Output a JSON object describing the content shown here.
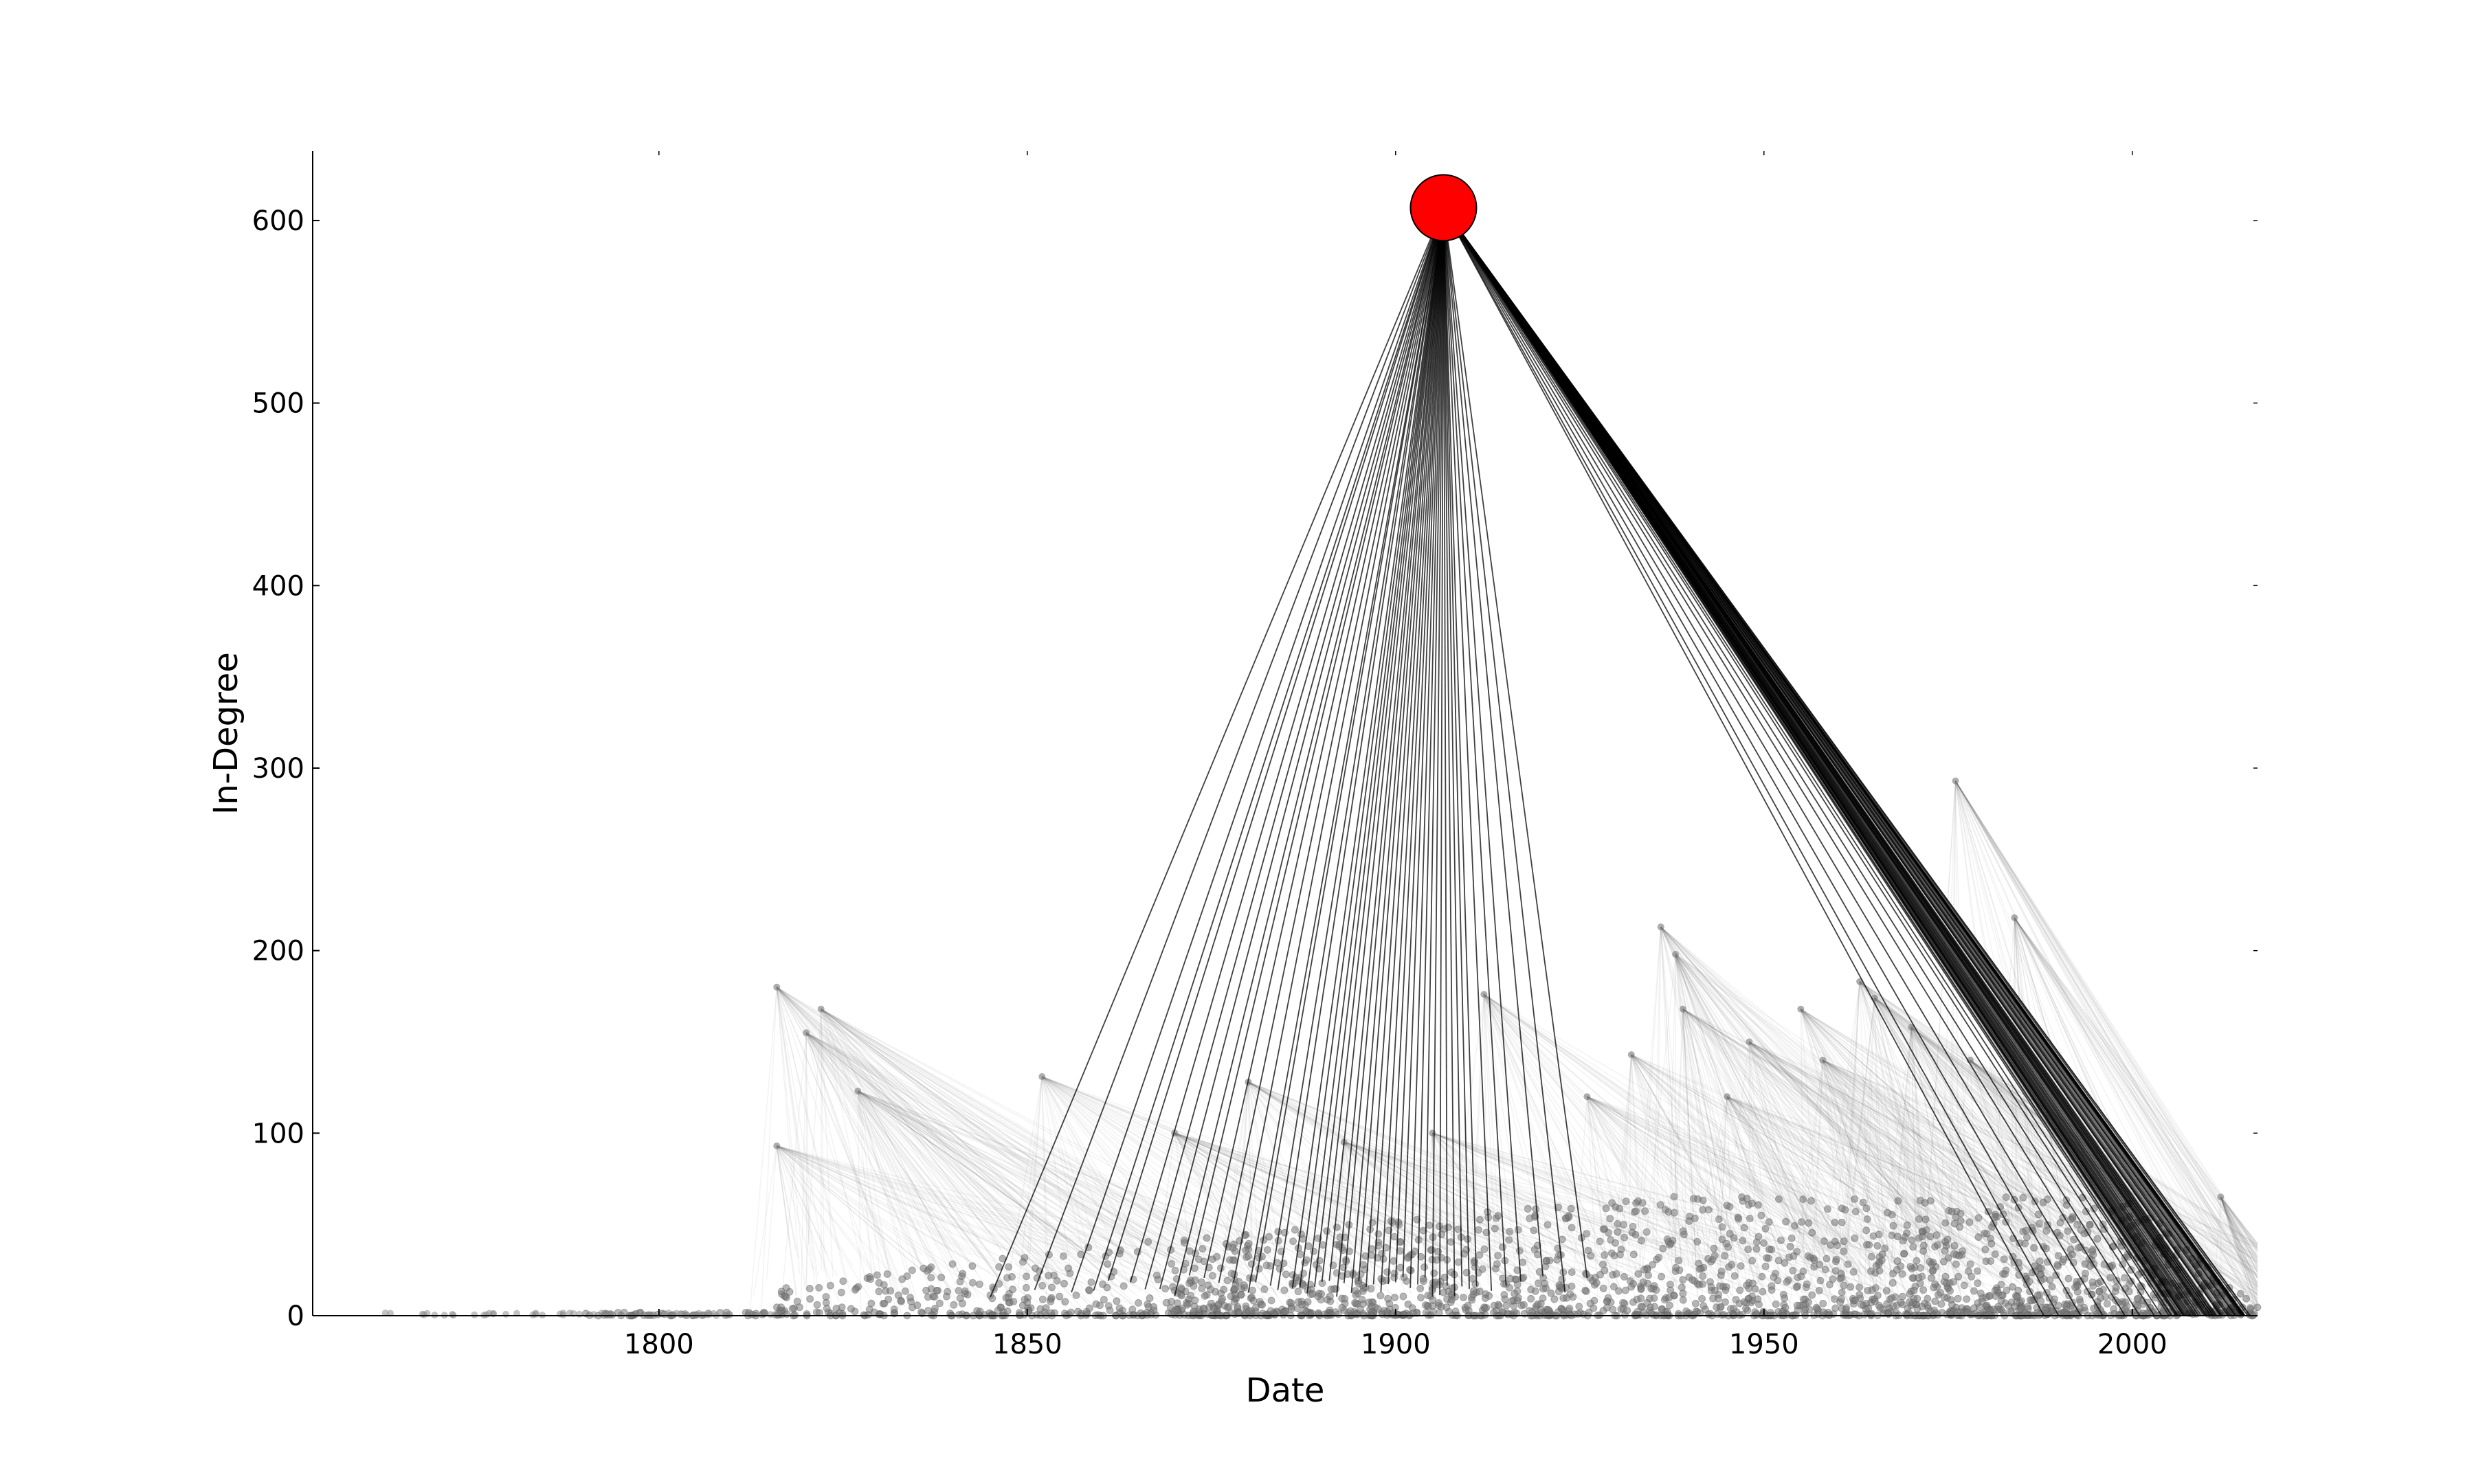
{
  "chart_data": {
    "type": "scatter",
    "title": "",
    "xlabel": "Date",
    "ylabel": "In-Degree",
    "xlim": [
      1753,
      2017
    ],
    "ylim": [
      0,
      638
    ],
    "xticks": [
      1800,
      1850,
      1900,
      1950,
      2000
    ],
    "yticks": [
      0,
      100,
      200,
      300,
      400,
      500,
      600
    ],
    "grid": false,
    "legend": "none",
    "highlight": {
      "x": 1906.5,
      "y": 607,
      "color": "#ff0000"
    },
    "highlight_citation_dates": [
      1845,
      1851,
      1856,
      1859,
      1861,
      1864,
      1866,
      1868,
      1870,
      1872,
      1874,
      1876,
      1878,
      1880,
      1881,
      1883,
      1884,
      1886,
      1887,
      1888,
      1889,
      1890,
      1891,
      1892,
      1893,
      1894,
      1895,
      1896,
      1897,
      1898,
      1899,
      1900,
      1901,
      1902,
      1903,
      1904,
      1905,
      1906,
      1907,
      1908,
      1909,
      1910,
      1911,
      1913,
      1915,
      1917,
      1920,
      1923,
      1926,
      1988,
      1990,
      1993,
      1996,
      1999,
      2001,
      2003,
      2004,
      2005,
      2006,
      2007,
      2008,
      2009,
      2010,
      2011,
      2012,
      2013,
      2014,
      2015,
      2016
    ],
    "hub_nodes": [
      {
        "x": 1816,
        "y": 180
      },
      {
        "x": 1822,
        "y": 168
      },
      {
        "x": 1820,
        "y": 155
      },
      {
        "x": 1827,
        "y": 123
      },
      {
        "x": 1816,
        "y": 93
      },
      {
        "x": 1852,
        "y": 131
      },
      {
        "x": 1936,
        "y": 213
      },
      {
        "x": 1938,
        "y": 198
      },
      {
        "x": 1939,
        "y": 168
      },
      {
        "x": 1955,
        "y": 168
      },
      {
        "x": 1963,
        "y": 183
      },
      {
        "x": 1965,
        "y": 174
      },
      {
        "x": 1976,
        "y": 293
      },
      {
        "x": 1984,
        "y": 218
      },
      {
        "x": 1932,
        "y": 143
      },
      {
        "x": 1948,
        "y": 150
      },
      {
        "x": 1970,
        "y": 158
      },
      {
        "x": 1926,
        "y": 120
      },
      {
        "x": 1958,
        "y": 140
      },
      {
        "x": 1978,
        "y": 140
      },
      {
        "x": 1945,
        "y": 120
      },
      {
        "x": 1912,
        "y": 176
      },
      {
        "x": 1905,
        "y": 100
      },
      {
        "x": 1893,
        "y": 95
      },
      {
        "x": 1880,
        "y": 128
      },
      {
        "x": 1870,
        "y": 100
      },
      {
        "x": 2012,
        "y": 65
      }
    ]
  }
}
